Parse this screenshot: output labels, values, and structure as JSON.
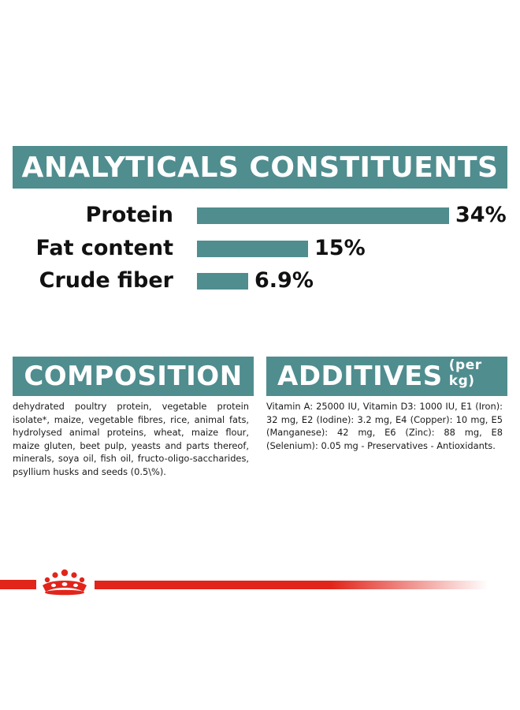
{
  "analytics": {
    "title": "ANALYTICALS CONSTITUENTS",
    "rows": [
      {
        "label": "Protein",
        "value_text": "34%",
        "value": 34
      },
      {
        "label": "Fat content",
        "value_text": "15%",
        "value": 15
      },
      {
        "label": "Crude fiber",
        "value_text": "6.9%",
        "value": 6.9
      }
    ],
    "bar_color": "#4f8d8f"
  },
  "composition": {
    "title": "COMPOSITION",
    "text": "dehydrated poultry protein, vegetable protein isolate*, maize, vegetable fibres, rice, animal fats, hydrolysed animal proteins, wheat, maize flour, maize gluten, beet pulp, yeasts and parts thereof, minerals, soya oil, fish oil, fructo-oligo-saccharides, psyllium husks and seeds (0.5\\%)."
  },
  "additives": {
    "title": "ADDITIVES",
    "subtitle": "(per kg)",
    "text": "Vitamin A: 25000 IU, Vitamin D3: 1000 IU, E1 (Iron): 32 mg, E2 (Iodine): 3.2 mg, E4 (Copper): 10 mg, E5 (Manganese): 42 mg, E6 (Zinc): 88 mg, E8 (Selenium): 0.05 mg - Preservatives - Antioxidants."
  },
  "brand": {
    "logo_icon": "royal-canin-crown-icon",
    "accent_color": "#e1251b"
  }
}
